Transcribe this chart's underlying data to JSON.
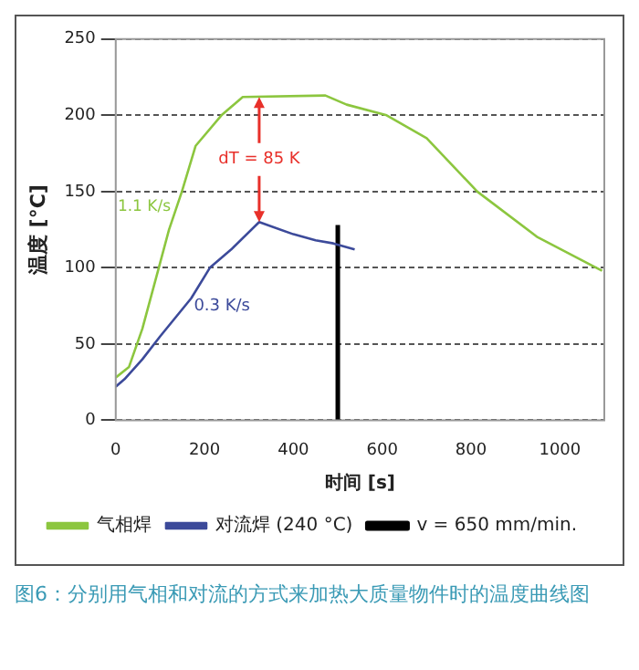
{
  "chart_data": {
    "type": "line",
    "xlabel": "时间 [s]",
    "ylabel": "温度 [°C]",
    "xlim": [
      0,
      1100
    ],
    "xticks": [
      0,
      200,
      400,
      600,
      800,
      1000
    ],
    "ylim": [
      0,
      250
    ],
    "yticks": [
      0,
      50,
      100,
      150,
      200,
      250
    ],
    "grid": "y",
    "legend": "bottom",
    "line_style": "solid",
    "marker": "none",
    "series": [
      {
        "name": "气相焊",
        "color": "#8cc63f",
        "x": [
          0,
          30,
          60,
          97,
          120,
          149,
          180,
          238,
          286,
          472,
          520,
          610,
          700,
          814,
          950,
          1082,
          1095
        ],
        "values": [
          28,
          35,
          60,
          100,
          125,
          150,
          180,
          200,
          212,
          213,
          207,
          200,
          185,
          150,
          120,
          100,
          98
        ]
      },
      {
        "name": "对流焊 (240 °C)",
        "color": "#3c4a9a",
        "x": [
          0,
          20,
          60,
          100,
          170,
          212,
          260,
          323,
          400,
          450,
          490,
          538
        ],
        "values": [
          22,
          27,
          40,
          55,
          80,
          100,
          112,
          130,
          122,
          118,
          116,
          112
        ]
      },
      {
        "name": "v = 650 mm/min.",
        "color": "#000000",
        "x": [
          500,
          500
        ],
        "values": [
          0,
          128
        ]
      }
    ],
    "annotations": [
      {
        "text": "dT = 85 K",
        "x": 323,
        "y": 212
      },
      "1.1 K/s",
      "0.3 K/s",
      "图6：分别用气相和对流的方式来加热大质量物件时的温度曲线图"
    ]
  }
}
